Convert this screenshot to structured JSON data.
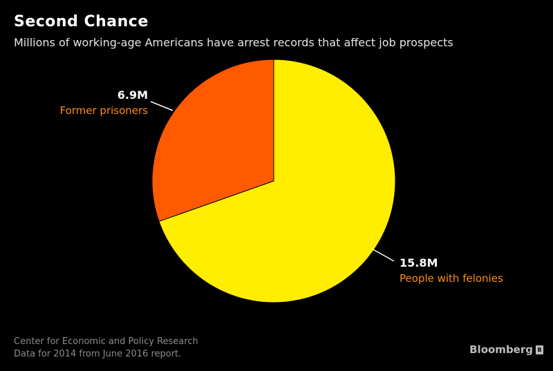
{
  "header": {
    "title": "Second Chance",
    "subtitle": "Millions of working-age Americans have arrest records that affect job prospects"
  },
  "footer": {
    "source_line1": "Center for Economic and Policy Research",
    "source_line2": "Data for 2014 from June 2016 report.",
    "brand": "Bloomberg",
    "brand_icon": "bloomberg-logo-icon"
  },
  "chart_data": {
    "type": "pie",
    "title": "Second Chance",
    "subtitle": "Millions of working-age Americans have arrest records that affect job prospects",
    "unit": "M",
    "slices": [
      {
        "label": "Former prisoners",
        "value": 6.9,
        "value_label": "6.9M",
        "color": "#ff5a00",
        "label_color": "#ff8c1a"
      },
      {
        "label": "People with felonies",
        "value": 15.8,
        "value_label": "15.8M",
        "color": "#ffee00",
        "label_color": "#ff8c1a"
      }
    ],
    "start_angle": "12 o'clock",
    "direction": "counter-clockwise for first slice",
    "colors": {
      "background": "#000000",
      "slice_border": "#000000"
    }
  }
}
